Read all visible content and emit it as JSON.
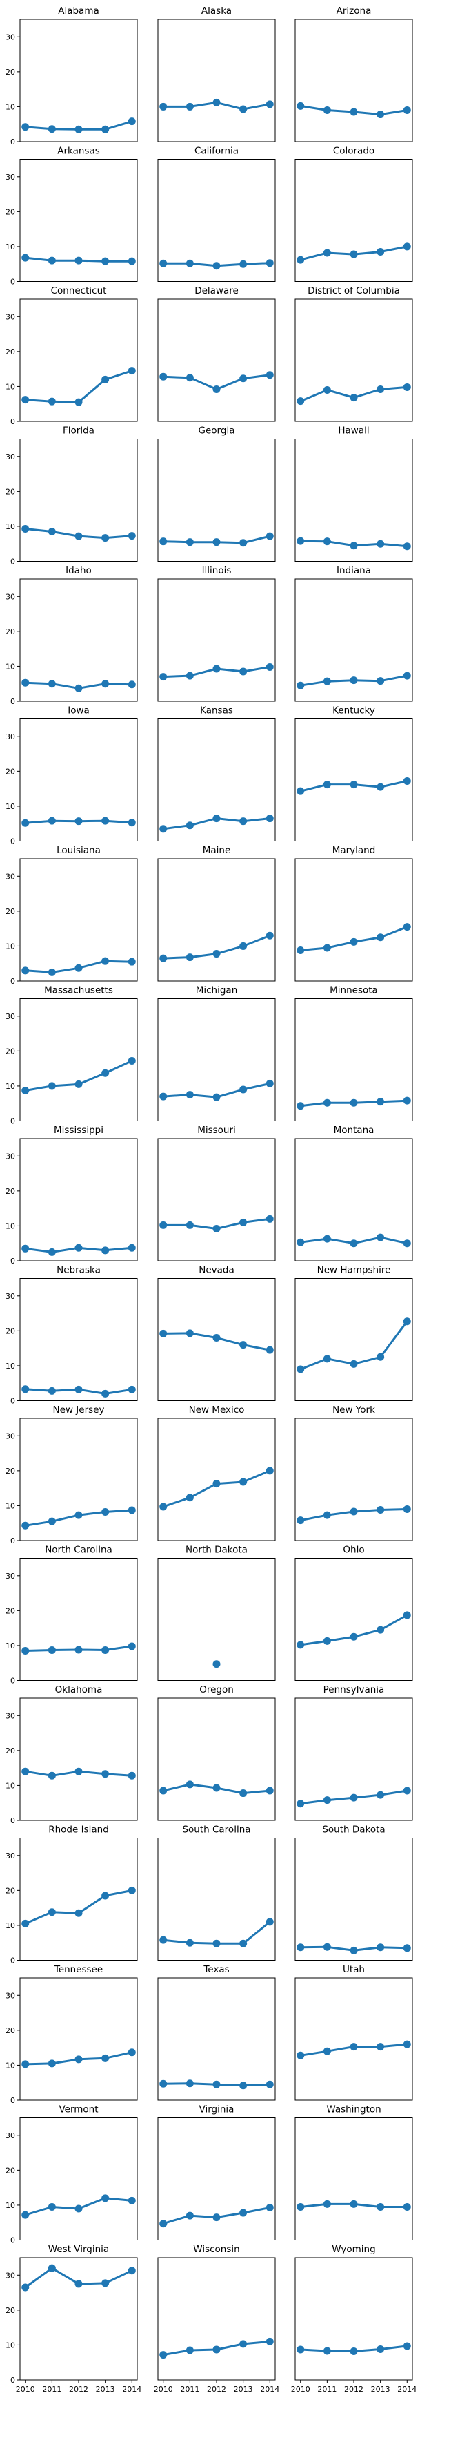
{
  "chart_data": {
    "type": "line",
    "layout": "small-multiples grid, 3 columns x 17 rows, shared axes",
    "x": [
      2010,
      2011,
      2012,
      2013,
      2014
    ],
    "x_tick_labels": [
      "2010",
      "2011",
      "2012",
      "2013",
      "2014"
    ],
    "ylim": [
      0,
      35
    ],
    "y_ticks": [
      0,
      10,
      20,
      30
    ],
    "y_tick_labels": [
      "0",
      "10",
      "20",
      "30"
    ],
    "color": "#1f77b4",
    "grid": false,
    "panels": [
      {
        "title": "Alabama",
        "values": [
          4.2,
          3.6,
          3.5,
          3.5,
          5.8
        ]
      },
      {
        "title": "Alaska",
        "values": [
          10.0,
          10.0,
          11.2,
          9.3,
          10.7
        ]
      },
      {
        "title": "Arizona",
        "values": [
          10.2,
          9.0,
          8.5,
          7.8,
          9.0
        ]
      },
      {
        "title": "Arkansas",
        "values": [
          6.8,
          6.0,
          6.0,
          5.8,
          5.8
        ]
      },
      {
        "title": "California",
        "values": [
          5.2,
          5.2,
          4.5,
          5.0,
          5.3
        ]
      },
      {
        "title": "Colorado",
        "values": [
          6.2,
          8.2,
          7.8,
          8.5,
          10.0
        ]
      },
      {
        "title": "Connecticut",
        "values": [
          6.2,
          5.7,
          5.5,
          12.0,
          14.5
        ]
      },
      {
        "title": "Delaware",
        "values": [
          12.8,
          12.5,
          9.2,
          12.3,
          13.3
        ]
      },
      {
        "title": "District of Columbia",
        "values": [
          5.8,
          9.0,
          6.8,
          9.2,
          9.8
        ]
      },
      {
        "title": "Florida",
        "values": [
          9.3,
          8.5,
          7.2,
          6.7,
          7.3
        ]
      },
      {
        "title": "Georgia",
        "values": [
          5.7,
          5.5,
          5.5,
          5.3,
          7.2
        ]
      },
      {
        "title": "Hawaii",
        "values": [
          5.8,
          5.7,
          4.5,
          5.0,
          4.3
        ]
      },
      {
        "title": "Idaho",
        "values": [
          5.3,
          5.0,
          3.7,
          5.0,
          4.8
        ]
      },
      {
        "title": "Illinois",
        "values": [
          7.0,
          7.3,
          9.3,
          8.5,
          9.8
        ]
      },
      {
        "title": "Indiana",
        "values": [
          4.5,
          5.7,
          6.0,
          5.8,
          7.3
        ]
      },
      {
        "title": "Iowa",
        "values": [
          5.2,
          5.8,
          5.7,
          5.8,
          5.3
        ]
      },
      {
        "title": "Kansas",
        "values": [
          3.5,
          4.5,
          6.5,
          5.7,
          6.5
        ]
      },
      {
        "title": "Kentucky",
        "values": [
          14.3,
          16.2,
          16.2,
          15.5,
          17.2
        ]
      },
      {
        "title": "Louisiana",
        "values": [
          3.0,
          2.5,
          3.7,
          5.7,
          5.5
        ]
      },
      {
        "title": "Maine",
        "values": [
          6.5,
          6.8,
          7.8,
          10.0,
          13.0
        ]
      },
      {
        "title": "Maryland",
        "values": [
          8.8,
          9.5,
          11.2,
          12.5,
          15.5
        ]
      },
      {
        "title": "Massachusetts",
        "values": [
          8.7,
          10.0,
          10.5,
          13.7,
          17.2
        ]
      },
      {
        "title": "Michigan",
        "values": [
          7.0,
          7.5,
          6.8,
          9.0,
          10.7
        ]
      },
      {
        "title": "Minnesota",
        "values": [
          4.3,
          5.2,
          5.2,
          5.5,
          5.8
        ]
      },
      {
        "title": "Mississippi",
        "values": [
          3.5,
          2.5,
          3.7,
          3.0,
          3.7
        ]
      },
      {
        "title": "Missouri",
        "values": [
          10.2,
          10.2,
          9.2,
          11.0,
          12.0
        ]
      },
      {
        "title": "Montana",
        "values": [
          5.3,
          6.3,
          5.0,
          6.7,
          5.0
        ]
      },
      {
        "title": "Nebraska",
        "values": [
          3.3,
          2.8,
          3.2,
          2.0,
          3.2
        ]
      },
      {
        "title": "Nevada",
        "values": [
          19.2,
          19.3,
          18.0,
          16.0,
          14.5
        ]
      },
      {
        "title": "New Hampshire",
        "values": [
          9.0,
          12.0,
          10.5,
          12.5,
          22.7
        ]
      },
      {
        "title": "New Jersey",
        "values": [
          4.3,
          5.5,
          7.3,
          8.2,
          8.7
        ]
      },
      {
        "title": "New Mexico",
        "values": [
          9.7,
          12.3,
          16.3,
          16.8,
          20.0
        ]
      },
      {
        "title": "New York",
        "values": [
          5.8,
          7.3,
          8.3,
          8.8,
          9.0
        ]
      },
      {
        "title": "North Carolina",
        "values": [
          8.5,
          8.7,
          8.8,
          8.7,
          9.8
        ]
      },
      {
        "title": "North Dakota",
        "values": [
          null,
          null,
          4.7,
          null,
          null
        ]
      },
      {
        "title": "Ohio",
        "values": [
          10.2,
          11.3,
          12.5,
          14.5,
          18.7
        ]
      },
      {
        "title": "Oklahoma",
        "values": [
          14.0,
          12.8,
          14.0,
          13.3,
          12.8
        ]
      },
      {
        "title": "Oregon",
        "values": [
          8.5,
          10.3,
          9.3,
          7.8,
          8.5
        ]
      },
      {
        "title": "Pennsylvania",
        "values": [
          4.8,
          5.8,
          6.5,
          7.3,
          8.5
        ]
      },
      {
        "title": "Rhode Island",
        "values": [
          10.5,
          13.8,
          13.5,
          18.5,
          20.0
        ]
      },
      {
        "title": "South Carolina",
        "values": [
          5.8,
          5.0,
          4.8,
          4.8,
          11.0
        ]
      },
      {
        "title": "South Dakota",
        "values": [
          3.7,
          3.8,
          2.8,
          3.7,
          3.5
        ]
      },
      {
        "title": "Tennessee",
        "values": [
          10.3,
          10.5,
          11.7,
          12.0,
          13.7
        ]
      },
      {
        "title": "Texas",
        "values": [
          4.7,
          4.8,
          4.5,
          4.2,
          4.5
        ]
      },
      {
        "title": "Utah",
        "values": [
          12.8,
          14.0,
          15.3,
          15.3,
          16.0
        ]
      },
      {
        "title": "Vermont",
        "values": [
          7.2,
          9.5,
          9.0,
          12.0,
          11.3
        ]
      },
      {
        "title": "Virginia",
        "values": [
          4.7,
          7.0,
          6.5,
          7.8,
          9.3
        ]
      },
      {
        "title": "Washington",
        "values": [
          9.5,
          10.3,
          10.3,
          9.5,
          9.5
        ]
      },
      {
        "title": "West Virginia",
        "values": [
          26.5,
          32.0,
          27.5,
          27.7,
          31.3
        ]
      },
      {
        "title": "Wisconsin",
        "values": [
          7.2,
          8.5,
          8.7,
          10.3,
          11.0
        ]
      },
      {
        "title": "Wyoming",
        "values": [
          8.7,
          8.3,
          8.2,
          8.8,
          9.7
        ]
      }
    ]
  }
}
